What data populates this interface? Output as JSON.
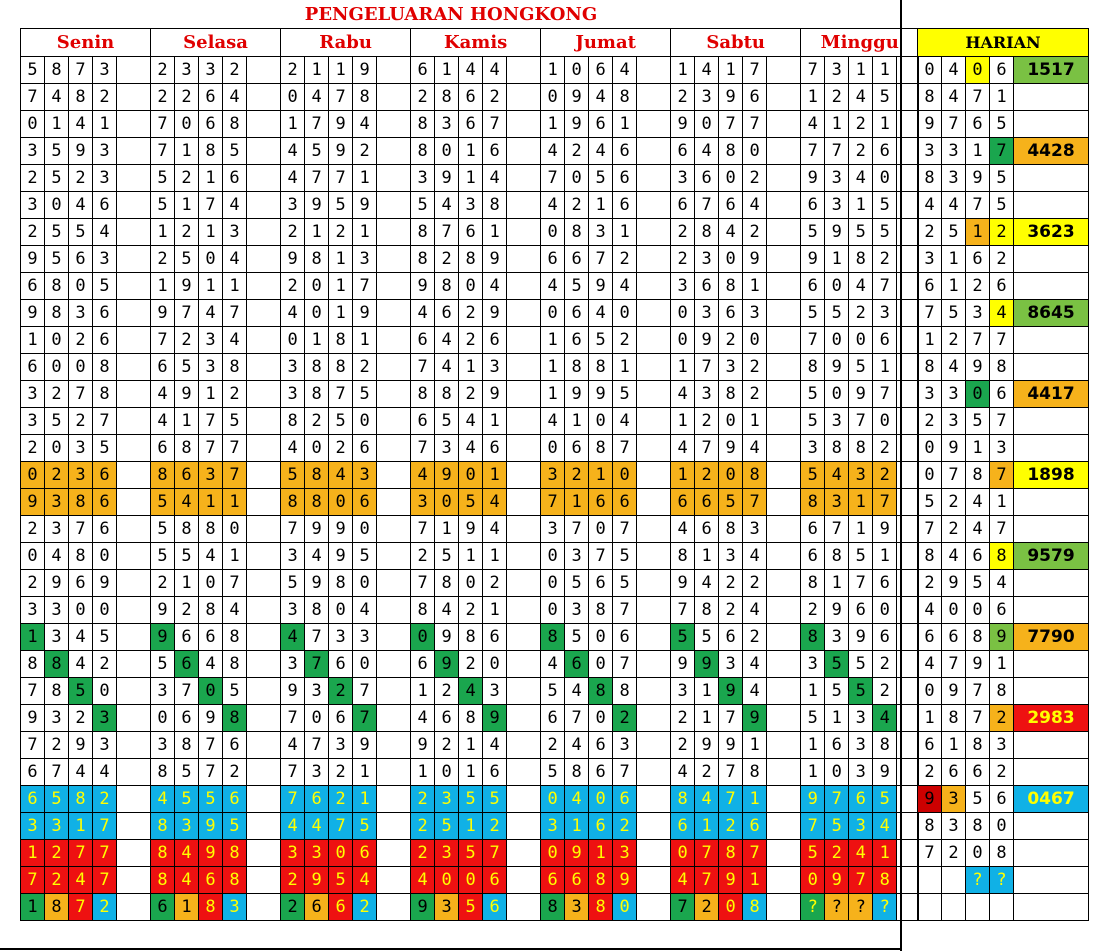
{
  "title": "PENGELUARAN HONGKONG",
  "days": [
    "Senin",
    "Selasa",
    "Rabu",
    "Kamis",
    "Jumat",
    "Sabtu",
    "Minggu"
  ],
  "harian_label": "HARIAN",
  "colors": {
    "orange": "#f6b21b",
    "green": "#1aa64e",
    "light_green": "#7ac143",
    "blue": "#10b1e6",
    "red": "#ee1111",
    "yellow": "#ffff00",
    "dark_red": "#cc0000"
  },
  "rows": [
    [
      "5873",
      "2332",
      "2119",
      "6144",
      "1064",
      "1417",
      "7311"
    ],
    [
      "7482",
      "2264",
      "0478",
      "2862",
      "0948",
      "2396",
      "1245"
    ],
    [
      "0141",
      "7068",
      "1794",
      "8367",
      "1961",
      "9077",
      "4121"
    ],
    [
      "3593",
      "7185",
      "4592",
      "8016",
      "4246",
      "6480",
      "7726"
    ],
    [
      "2523",
      "5216",
      "4771",
      "3914",
      "7056",
      "3602",
      "9340"
    ],
    [
      "3046",
      "5174",
      "3959",
      "5438",
      "4216",
      "6764",
      "6315"
    ],
    [
      "2554",
      "1213",
      "2121",
      "8761",
      "0831",
      "2842",
      "5955"
    ],
    [
      "9563",
      "2504",
      "9813",
      "8289",
      "6672",
      "2309",
      "9182"
    ],
    [
      "6805",
      "1911",
      "2017",
      "9804",
      "4594",
      "3681",
      "6047"
    ],
    [
      "9836",
      "9747",
      "4019",
      "4629",
      "0640",
      "0363",
      "5523"
    ],
    [
      "1026",
      "7234",
      "0181",
      "6426",
      "1652",
      "0920",
      "7006"
    ],
    [
      "6008",
      "6538",
      "3882",
      "7413",
      "1881",
      "1732",
      "8951"
    ],
    [
      "3278",
      "4912",
      "3875",
      "8829",
      "1995",
      "4382",
      "5097"
    ],
    [
      "3527",
      "4175",
      "8250",
      "6541",
      "4104",
      "1201",
      "5370"
    ],
    [
      "2035",
      "6877",
      "4026",
      "7346",
      "0687",
      "4794",
      "3882"
    ],
    [
      "0236",
      "8637",
      "5843",
      "4901",
      "3210",
      "1208",
      "5432"
    ],
    [
      "9386",
      "5411",
      "8806",
      "3054",
      "7166",
      "6657",
      "8317"
    ],
    [
      "2376",
      "5880",
      "7990",
      "7194",
      "3707",
      "4683",
      "6719"
    ],
    [
      "0480",
      "5541",
      "3495",
      "2511",
      "0375",
      "8134",
      "6851"
    ],
    [
      "2969",
      "2107",
      "5980",
      "7802",
      "0565",
      "9422",
      "8176"
    ],
    [
      "3300",
      "9284",
      "3804",
      "8421",
      "0387",
      "7824",
      "2960"
    ],
    [
      "1345",
      "9668",
      "4733",
      "0986",
      "8506",
      "5562",
      "8396"
    ],
    [
      "8842",
      "5648",
      "3760",
      "6920",
      "4607",
      "9934",
      "3552"
    ],
    [
      "7850",
      "3705",
      "9327",
      "1243",
      "5488",
      "3194",
      "1552"
    ],
    [
      "9323",
      "0698",
      "7067",
      "4689",
      "6702",
      "2179",
      "5134"
    ],
    [
      "7293",
      "3876",
      "4739",
      "9214",
      "2463",
      "2991",
      "1638"
    ],
    [
      "6744",
      "8572",
      "7321",
      "1016",
      "5867",
      "4278",
      "1039"
    ],
    [
      "6582",
      "4556",
      "7621",
      "2355",
      "0406",
      "8471",
      "9765"
    ],
    [
      "3317",
      "8395",
      "4475",
      "2512",
      "3162",
      "6126",
      "7534"
    ],
    [
      "1277",
      "8498",
      "3306",
      "2357",
      "0913",
      "0787",
      "5241"
    ],
    [
      "7247",
      "8468",
      "2954",
      "4006",
      "6689",
      "4791",
      "0978"
    ],
    [
      "1872",
      "6183",
      "2662",
      "9356",
      "8380",
      "7208",
      "????"
    ]
  ],
  "harian": [
    {
      "d": "0406",
      "r": "1517"
    },
    {
      "d": "8471",
      "r": ""
    },
    {
      "d": "9765",
      "r": ""
    },
    {
      "d": "3317",
      "r": "4428"
    },
    {
      "d": "8395",
      "r": ""
    },
    {
      "d": "4475",
      "r": ""
    },
    {
      "d": "2512",
      "r": "3623"
    },
    {
      "d": "3162",
      "r": ""
    },
    {
      "d": "6126",
      "r": ""
    },
    {
      "d": "7534",
      "r": "8645"
    },
    {
      "d": "1277",
      "r": ""
    },
    {
      "d": "8498",
      "r": ""
    },
    {
      "d": "3306",
      "r": "4417"
    },
    {
      "d": "2357",
      "r": ""
    },
    {
      "d": "0913",
      "r": ""
    },
    {
      "d": "0787",
      "r": "1898"
    },
    {
      "d": "5241",
      "r": ""
    },
    {
      "d": "7247",
      "r": ""
    },
    {
      "d": "8468",
      "r": "9579"
    },
    {
      "d": "2954",
      "r": ""
    },
    {
      "d": "4006",
      "r": ""
    },
    {
      "d": "6689",
      "r": "7790"
    },
    {
      "d": "4791",
      "r": ""
    },
    {
      "d": "0978",
      "r": ""
    },
    {
      "d": "1872",
      "r": "2983"
    },
    {
      "d": "6183",
      "r": ""
    },
    {
      "d": "2662",
      "r": ""
    },
    {
      "d": "9356",
      "r": "0467"
    },
    {
      "d": "8380",
      "r": ""
    },
    {
      "d": "7208",
      "r": ""
    },
    {
      "d": "  ??",
      "r": ""
    },
    {
      "d": "    ",
      "r": ""
    }
  ]
}
